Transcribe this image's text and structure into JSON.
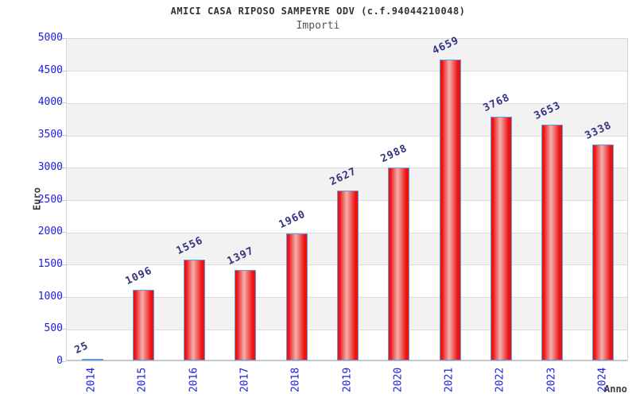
{
  "chart_data": {
    "type": "bar",
    "title": "AMICI CASA RIPOSO SAMPEYRE ODV (c.f.94044210048)",
    "subtitle": "Importi",
    "xlabel": "Anno",
    "ylabel": "Euro",
    "categories": [
      "2014",
      "2015",
      "2016",
      "2017",
      "2018",
      "2019",
      "2020",
      "2021",
      "2022",
      "2023",
      "2024"
    ],
    "values": [
      25,
      1096,
      1556,
      1397,
      1960,
      2627,
      2988,
      4659,
      3768,
      3653,
      3338
    ],
    "ylim": [
      0,
      5000
    ],
    "ytick_step": 500,
    "yticks": [
      0,
      500,
      1000,
      1500,
      2000,
      2500,
      3000,
      3500,
      4000,
      4500,
      5000
    ],
    "grid": "horizontal-bands",
    "legend": "none",
    "colors": {
      "title": "#333333",
      "subtitle": "#555555",
      "axis_title": "#3c3c3c",
      "tick_label": "#1c1cde",
      "value_label": "#333380",
      "bar_fill": "#ee1111",
      "bar_highlight": "#f2b2ae",
      "bar_border": "#5c9ee5",
      "band": "#f2f2f2",
      "band_alt": "#ffffff",
      "gridline": "#dcdcdc",
      "plot_border": "#d6d6d6",
      "baseline": "#c8c8c8"
    }
  }
}
